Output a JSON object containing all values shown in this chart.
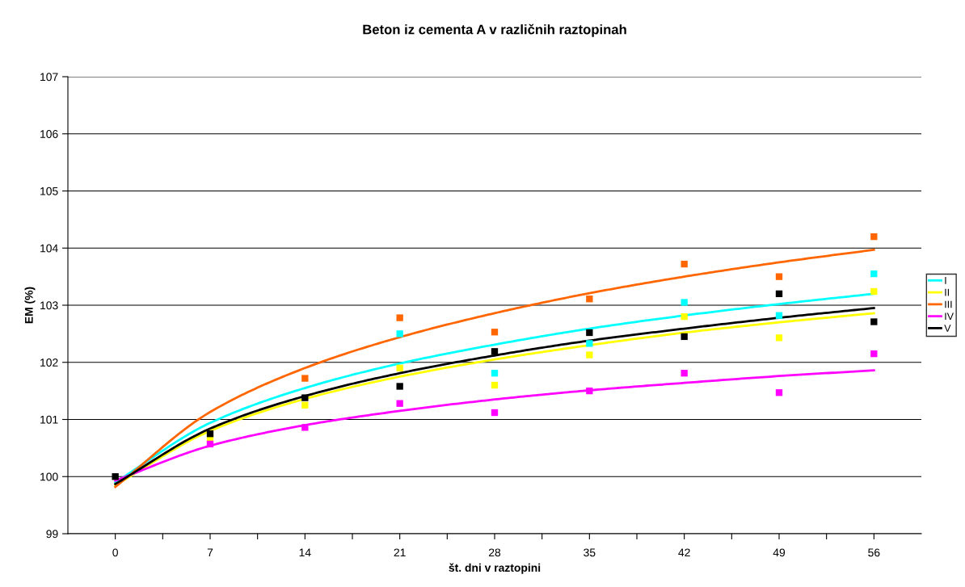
{
  "chart_data": {
    "type": "scatter",
    "title": "Beton iz cementa A v različnih raztopinah",
    "xlabel": "št. dni v raztopini",
    "ylabel": "EM (%)",
    "x": [
      0,
      7,
      14,
      21,
      28,
      35,
      42,
      49,
      56
    ],
    "xlim": [
      -3.5,
      59.5
    ],
    "xticks": [
      0,
      {
        "value": 3.5,
        "label": null
      },
      7,
      {
        "value": 10.5,
        "label": null
      },
      14,
      {
        "value": 17.5,
        "label": null
      },
      21,
      {
        "value": 24.5,
        "label": null
      },
      28,
      {
        "value": 31.5,
        "label": null
      },
      35,
      {
        "value": 38.5,
        "label": null
      },
      42,
      {
        "value": 45.5,
        "label": null
      },
      49,
      {
        "value": 52.5,
        "label": null
      },
      56
    ],
    "ylim": [
      99,
      107
    ],
    "yticks": [
      99,
      100,
      101,
      102,
      103,
      104,
      105,
      106,
      107
    ],
    "grid": "y",
    "legend": "right",
    "marker": "square",
    "series": [
      {
        "color": "#00ffff",
        "values": [
          null,
          null,
          null,
          102.5,
          101.81,
          102.33,
          103.05,
          102.82,
          103.55
        ]
      },
      {
        "color": "#ffff00",
        "values": [
          null,
          100.66,
          101.25,
          101.9,
          101.6,
          102.13,
          102.8,
          102.43,
          103.24
        ]
      },
      {
        "color": "#ff6600",
        "values": [
          null,
          null,
          101.72,
          102.78,
          102.53,
          103.11,
          103.72,
          103.5,
          104.2
        ]
      },
      {
        "color": "#ff00ff",
        "values": [
          null,
          100.57,
          100.86,
          101.28,
          101.12,
          101.5,
          101.81,
          101.47,
          102.15
        ]
      },
      {
        "color": "#000000",
        "values": [
          100,
          100.75,
          101.38,
          101.58,
          102.19,
          102.52,
          102.45,
          103.2,
          102.71
        ]
      },
      {
        "type": "line",
        "name": "I",
        "color": "#00ffff",
        "marker": "none",
        "values": [
          99.9,
          100.94,
          101.55,
          101.98,
          102.31,
          102.59,
          102.82,
          103.02,
          103.2
        ]
      },
      {
        "type": "line",
        "name": "II",
        "color": "#ffff00",
        "marker": "none",
        "values": [
          99.85,
          100.8,
          101.36,
          101.75,
          102.05,
          102.3,
          102.52,
          102.7,
          102.86
        ]
      },
      {
        "type": "line",
        "name": "III",
        "color": "#ff6600",
        "marker": "none",
        "values": [
          99.82,
          101.13,
          101.9,
          102.44,
          102.86,
          103.21,
          103.5,
          103.75,
          103.97
        ]
      },
      {
        "type": "line",
        "name": "IV",
        "color": "#ff00ff",
        "marker": "none",
        "values": [
          99.93,
          100.54,
          100.9,
          101.15,
          101.35,
          101.51,
          101.64,
          101.76,
          101.86
        ]
      },
      {
        "type": "line",
        "name": "V",
        "color": "#000000",
        "marker": "none",
        "values": [
          99.87,
          100.84,
          101.41,
          101.81,
          102.12,
          102.38,
          102.59,
          102.78,
          102.95
        ]
      }
    ]
  }
}
